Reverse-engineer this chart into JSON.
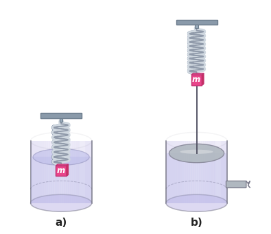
{
  "bg_color": "#ffffff",
  "label_a": "a)",
  "label_b": "b)",
  "label_fontsize": 11,
  "mass_color": "#e8458a",
  "mass_label": "m",
  "spring_color_light": "#d0d8e0",
  "spring_color_dark": "#909aaa",
  "support_color": "#8a9aaa",
  "support_edge": "#6a7a8a",
  "cylinder_fill": "#c0b8e8",
  "cylinder_alpha": 0.38,
  "cylinder_edge": "#777788",
  "fluid_fill": "#b8b8e8",
  "fluid_alpha": 0.55,
  "piston_fill": "#b0b8c0",
  "piston_edge": "#888899",
  "pipe_color": "#b0b8c0",
  "pipe_edge": "#777788"
}
